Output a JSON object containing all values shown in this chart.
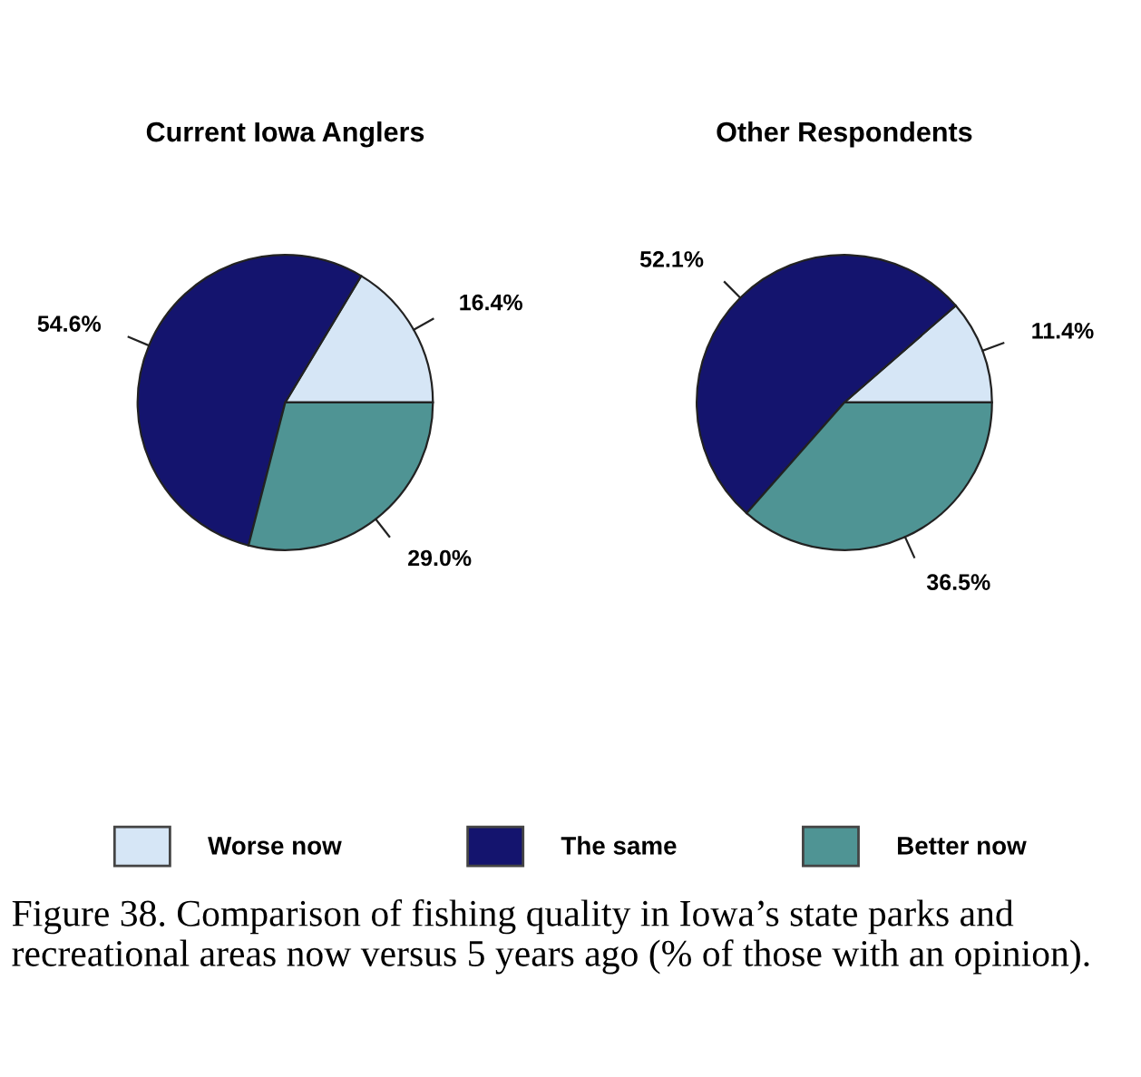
{
  "chart_data": [
    {
      "type": "pie",
      "title": "Current Iowa Anglers",
      "categories": [
        "Worse now",
        "The same",
        "Better now"
      ],
      "values": [
        16.4,
        54.6,
        29.0
      ],
      "value_labels": [
        "16.4%",
        "54.6%",
        "29.0%"
      ],
      "colors": [
        "#d6e6f6",
        "#14146e",
        "#4f9494"
      ],
      "legend": "bottom",
      "annotations": [
        "Figure 38. Comparison of fishing quality in Iowa’s state parks and recreational areas now versus 5 years ago (% of those with an opinion)."
      ]
    },
    {
      "type": "pie",
      "title": "Other Respondents",
      "values": [
        11.4,
        52.1,
        36.5
      ],
      "value_labels": [
        "11.4%",
        "52.1%",
        "36.5%"
      ],
      "colors": [
        "#d6e6f6",
        "#14146e",
        "#4f9494"
      ]
    }
  ]
}
